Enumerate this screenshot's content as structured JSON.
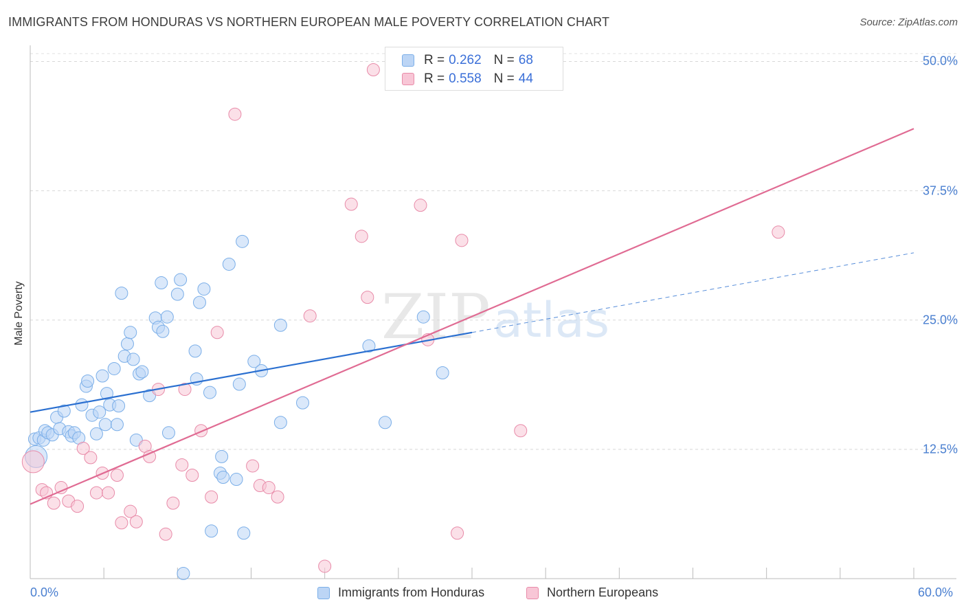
{
  "chart_data": {
    "type": "scatter",
    "title": "IMMIGRANTS FROM HONDURAS VS NORTHERN EUROPEAN MALE POVERTY CORRELATION CHART",
    "source": "Source: ZipAtlas.com",
    "xlabel": "",
    "ylabel": "Male Poverty",
    "xlim": [
      0,
      60
    ],
    "ylim": [
      0,
      50
    ],
    "x_tick_labels": [
      {
        "value": 0,
        "label": "0.0%"
      },
      {
        "value": 60,
        "label": "60.0%"
      }
    ],
    "y_tick_labels": [
      {
        "value": 12.5,
        "label": "12.5%"
      },
      {
        "value": 25,
        "label": "25.0%"
      },
      {
        "value": 37.5,
        "label": "37.5%"
      },
      {
        "value": 50,
        "label": "50.0%"
      }
    ],
    "watermark": "ZIPatlas",
    "legend": [
      {
        "name": "Immigrants from Honduras",
        "r_label": "R =",
        "r": "0.262",
        "n_label": "N =",
        "n": "68",
        "color": "#7aaee8",
        "fill": "#bcd5f5"
      },
      {
        "name": "Northern Europeans",
        "r_label": "R =",
        "r": "0.558",
        "n_label": "N =",
        "n": "44",
        "color": "#e88aa8",
        "fill": "#f8c6d6"
      }
    ],
    "series": [
      {
        "name": "Immigrants from Honduras",
        "color": "#7aaee8",
        "fill": "#bcd5f5",
        "trend": {
          "x0": 0,
          "y0": 16.1,
          "x1": 30,
          "y1": 23.8,
          "color": "#2a6fd0",
          "dash_x1": 60,
          "dash_y1": 31.5
        },
        "points": [
          [
            0.3,
            13.5
          ],
          [
            0.6,
            13.6
          ],
          [
            0.9,
            13.4
          ],
          [
            1.0,
            14.3
          ],
          [
            1.2,
            14.1
          ],
          [
            1.5,
            13.9
          ],
          [
            1.8,
            15.6
          ],
          [
            2.0,
            14.5
          ],
          [
            2.3,
            16.2
          ],
          [
            2.6,
            14.2
          ],
          [
            2.8,
            13.8
          ],
          [
            3.0,
            14.1
          ],
          [
            3.3,
            13.6
          ],
          [
            3.5,
            16.8
          ],
          [
            3.8,
            18.6
          ],
          [
            3.9,
            19.1
          ],
          [
            4.2,
            15.8
          ],
          [
            4.5,
            14.0
          ],
          [
            4.7,
            16.1
          ],
          [
            4.9,
            19.6
          ],
          [
            5.1,
            14.9
          ],
          [
            5.2,
            17.9
          ],
          [
            5.4,
            16.8
          ],
          [
            5.7,
            20.3
          ],
          [
            5.9,
            14.9
          ],
          [
            6.0,
            16.7
          ],
          [
            6.2,
            27.6
          ],
          [
            6.4,
            21.5
          ],
          [
            6.6,
            22.7
          ],
          [
            6.8,
            23.8
          ],
          [
            7.0,
            21.2
          ],
          [
            7.2,
            13.4
          ],
          [
            7.4,
            19.8
          ],
          [
            7.6,
            20.0
          ],
          [
            8.1,
            17.7
          ],
          [
            8.5,
            25.2
          ],
          [
            8.7,
            24.3
          ],
          [
            8.9,
            28.6
          ],
          [
            9.0,
            23.9
          ],
          [
            9.3,
            25.3
          ],
          [
            9.4,
            14.1
          ],
          [
            10.0,
            27.5
          ],
          [
            10.2,
            28.9
          ],
          [
            10.4,
            0.5
          ],
          [
            11.2,
            22.0
          ],
          [
            11.3,
            19.3
          ],
          [
            11.5,
            26.7
          ],
          [
            11.8,
            28.0
          ],
          [
            12.2,
            18.0
          ],
          [
            12.3,
            4.6
          ],
          [
            12.9,
            10.2
          ],
          [
            13.0,
            11.8
          ],
          [
            13.1,
            9.8
          ],
          [
            13.5,
            30.4
          ],
          [
            14.0,
            9.6
          ],
          [
            14.2,
            18.8
          ],
          [
            14.4,
            32.6
          ],
          [
            14.5,
            4.4
          ],
          [
            15.2,
            21.0
          ],
          [
            15.7,
            20.1
          ],
          [
            17.0,
            24.5
          ],
          [
            17.0,
            15.1
          ],
          [
            18.5,
            17.0
          ],
          [
            23.0,
            22.5
          ],
          [
            24.1,
            15.1
          ],
          [
            26.7,
            25.3
          ],
          [
            28.0,
            19.9
          ],
          [
            0.4,
            11.8
          ]
        ]
      },
      {
        "name": "Northern Europeans",
        "color": "#e88aa8",
        "fill": "#f8c6d6",
        "trend": {
          "x0": 0,
          "y0": 7.2,
          "x1": 60,
          "y1": 43.5,
          "color": "#e06b93"
        },
        "points": [
          [
            0.2,
            11.3
          ],
          [
            0.8,
            8.6
          ],
          [
            1.1,
            8.3
          ],
          [
            1.6,
            7.3
          ],
          [
            2.1,
            8.8
          ],
          [
            2.6,
            7.5
          ],
          [
            3.2,
            7.0
          ],
          [
            3.6,
            12.6
          ],
          [
            4.1,
            11.7
          ],
          [
            4.5,
            8.3
          ],
          [
            4.9,
            10.2
          ],
          [
            5.3,
            8.3
          ],
          [
            5.9,
            10.0
          ],
          [
            6.2,
            5.4
          ],
          [
            6.8,
            6.5
          ],
          [
            7.2,
            5.5
          ],
          [
            7.8,
            12.8
          ],
          [
            8.1,
            11.8
          ],
          [
            8.7,
            18.3
          ],
          [
            9.2,
            4.3
          ],
          [
            9.7,
            7.3
          ],
          [
            10.3,
            11.0
          ],
          [
            10.5,
            18.3
          ],
          [
            11.0,
            10.0
          ],
          [
            11.6,
            14.3
          ],
          [
            12.3,
            7.9
          ],
          [
            12.7,
            23.8
          ],
          [
            13.9,
            44.9
          ],
          [
            15.1,
            10.9
          ],
          [
            15.6,
            9.0
          ],
          [
            16.2,
            8.8
          ],
          [
            16.8,
            7.9
          ],
          [
            19.0,
            25.4
          ],
          [
            20.0,
            1.2
          ],
          [
            21.8,
            36.2
          ],
          [
            22.5,
            33.1
          ],
          [
            22.9,
            27.2
          ],
          [
            23.3,
            49.2
          ],
          [
            26.5,
            36.1
          ],
          [
            27.0,
            23.1
          ],
          [
            29.0,
            4.4
          ],
          [
            29.3,
            32.7
          ],
          [
            33.3,
            14.3
          ],
          [
            50.8,
            33.5
          ]
        ]
      }
    ]
  }
}
